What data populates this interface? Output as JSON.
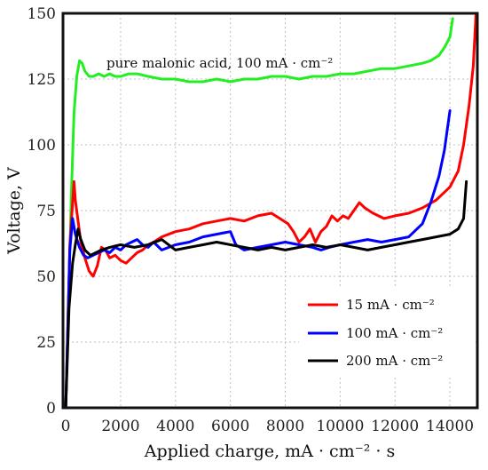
{
  "chart_data": {
    "type": "line",
    "title": "",
    "xlabel": "Applied charge, mA · cm⁻² · s",
    "ylabel": "Voltage, V",
    "xlim": [
      -100,
      15000
    ],
    "ylim": [
      0,
      150
    ],
    "xticks": [
      0,
      2000,
      4000,
      6000,
      8000,
      10000,
      12000,
      14000
    ],
    "yticks": [
      0,
      25,
      50,
      75,
      100,
      125,
      150
    ],
    "grid": true,
    "legend_position": "lower-right",
    "annotation": "pure malonic acid, 100 mA · cm⁻²",
    "series": [
      {
        "name": "15 mA · cm⁻²",
        "color": "#ff0000",
        "x": [
          0,
          150,
          300,
          350,
          450,
          550,
          700,
          850,
          1000,
          1150,
          1300,
          1450,
          1600,
          1800,
          2000,
          2200,
          2400,
          2600,
          2800,
          3000,
          3200,
          3500,
          4000,
          4500,
          5000,
          5500,
          6000,
          6500,
          7000,
          7500,
          7800,
          8100,
          8300,
          8500,
          8700,
          8900,
          9100,
          9300,
          9500,
          9700,
          9900,
          10100,
          10300,
          10500,
          10700,
          10900,
          11200,
          11600,
          12000,
          12500,
          13000,
          13500,
          14000,
          14300,
          14500,
          14700,
          14850,
          14950
        ],
        "y": [
          0,
          62,
          86,
          79,
          71,
          63,
          57,
          52,
          50,
          54,
          61,
          60,
          57,
          58,
          56,
          55,
          57,
          59,
          60,
          62,
          63,
          65,
          67,
          68,
          70,
          71,
          72,
          71,
          73,
          74,
          72,
          70,
          67,
          63,
          65,
          68,
          63,
          67,
          69,
          73,
          71,
          73,
          72,
          75,
          78,
          76,
          74,
          72,
          73,
          74,
          76,
          79,
          84,
          90,
          100,
          115,
          130,
          150
        ]
      },
      {
        "name": "100 mA · cm⁻²",
        "color": "#0000ff",
        "x": [
          0,
          150,
          250,
          350,
          500,
          650,
          800,
          1000,
          1200,
          1400,
          1600,
          1800,
          2000,
          2200,
          2400,
          2600,
          2800,
          3000,
          3200,
          3500,
          4000,
          4500,
          5000,
          5500,
          6000,
          6200,
          6500,
          7000,
          7500,
          8000,
          8500,
          9000,
          9300,
          9600,
          10000,
          10500,
          11000,
          11500,
          12000,
          12500,
          13000,
          13300,
          13600,
          13800,
          14000
        ],
        "y": [
          0,
          60,
          72,
          66,
          61,
          58,
          57,
          58,
          59,
          60,
          59,
          61,
          60,
          62,
          63,
          64,
          62,
          61,
          63,
          60,
          62,
          63,
          65,
          66,
          67,
          62,
          60,
          61,
          62,
          63,
          62,
          61,
          60,
          61,
          62,
          63,
          64,
          63,
          64,
          65,
          70,
          78,
          88,
          98,
          113
        ]
      },
      {
        "name": "200 mA · cm⁻²",
        "color": "#000000",
        "x": [
          0,
          120,
          250,
          350,
          450,
          550,
          700,
          900,
          1100,
          1300,
          1600,
          2000,
          2500,
          3000,
          3500,
          4000,
          4500,
          5000,
          5500,
          6000,
          6500,
          7000,
          7500,
          8000,
          8500,
          9000,
          9500,
          10000,
          10500,
          11000,
          11500,
          12000,
          12500,
          13000,
          13500,
          14000,
          14300,
          14500,
          14600
        ],
        "y": [
          0,
          38,
          55,
          62,
          68,
          64,
          60,
          58,
          59,
          60,
          61,
          62,
          61,
          62,
          64,
          60,
          61,
          62,
          63,
          62,
          61,
          60,
          61,
          60,
          61,
          62,
          61,
          62,
          61,
          60,
          61,
          62,
          63,
          64,
          65,
          66,
          68,
          72,
          86
        ]
      },
      {
        "name": "pure malonic acid, 100 mA · cm⁻²",
        "color": "#22ee22",
        "x": [
          0,
          100,
          200,
          300,
          400,
          500,
          600,
          700,
          850,
          1000,
          1200,
          1400,
          1600,
          1800,
          2000,
          2300,
          2600,
          3000,
          3500,
          4000,
          4500,
          5000,
          5500,
          6000,
          6500,
          7000,
          7500,
          8000,
          8500,
          9000,
          9500,
          10000,
          10500,
          11000,
          11500,
          12000,
          12500,
          13000,
          13300,
          13600,
          13800,
          14000,
          14100
        ],
        "y": [
          0,
          40,
          80,
          112,
          126,
          132,
          131,
          128,
          126,
          126,
          127,
          126,
          127,
          126,
          126,
          127,
          127,
          126,
          125,
          125,
          124,
          124,
          125,
          124,
          125,
          125,
          126,
          126,
          125,
          126,
          126,
          127,
          127,
          128,
          129,
          129,
          130,
          131,
          132,
          134,
          137,
          141,
          148
        ]
      }
    ]
  }
}
